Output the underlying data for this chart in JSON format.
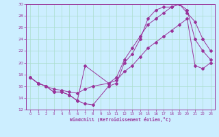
{
  "xlabel": "Windchill (Refroidissement éolien,°C)",
  "bg_color": "#cceeff",
  "grid_color": "#aaddcc",
  "line_color": "#993399",
  "xlim": [
    -0.5,
    23.5
  ],
  "ylim": [
    12,
    30
  ],
  "xticks": [
    0,
    1,
    2,
    3,
    4,
    5,
    6,
    7,
    8,
    9,
    10,
    11,
    12,
    13,
    14,
    15,
    16,
    17,
    18,
    19,
    20,
    21,
    22,
    23
  ],
  "yticks": [
    12,
    14,
    16,
    18,
    20,
    22,
    24,
    26,
    28,
    30
  ],
  "line1_x": [
    0,
    1,
    2,
    3,
    4,
    5,
    6,
    7,
    8,
    10,
    11,
    12,
    13,
    14,
    15,
    16,
    17,
    18,
    19,
    20,
    21,
    22,
    23
  ],
  "line1_y": [
    17.5,
    16.5,
    16.0,
    15.0,
    15.0,
    14.5,
    13.5,
    13.0,
    12.8,
    16.0,
    16.5,
    20.0,
    21.5,
    24.0,
    27.5,
    29.0,
    29.5,
    29.5,
    30.0,
    29.0,
    24.0,
    22.0,
    20.5
  ],
  "line2_x": [
    0,
    1,
    2,
    3,
    4,
    5,
    6,
    7,
    10,
    11,
    12,
    13,
    14,
    15,
    16,
    17,
    18,
    19,
    20,
    21,
    22,
    23
  ],
  "line2_y": [
    17.5,
    16.5,
    16.0,
    15.0,
    15.0,
    14.5,
    13.5,
    19.5,
    16.5,
    17.5,
    20.5,
    22.5,
    24.5,
    26.5,
    27.5,
    28.5,
    29.5,
    30.0,
    28.5,
    27.0,
    24.0,
    22.0
  ],
  "line3_x": [
    0,
    1,
    2,
    3,
    4,
    5,
    6,
    7,
    8,
    10,
    11,
    12,
    13,
    14,
    15,
    16,
    17,
    18,
    19,
    20,
    21,
    22,
    23
  ],
  "line3_y": [
    17.5,
    16.5,
    16.0,
    15.5,
    15.3,
    15.0,
    14.8,
    15.5,
    16.0,
    16.5,
    17.0,
    18.5,
    19.5,
    21.0,
    22.5,
    23.5,
    24.5,
    25.5,
    26.5,
    27.5,
    19.5,
    19.0,
    20.0
  ]
}
